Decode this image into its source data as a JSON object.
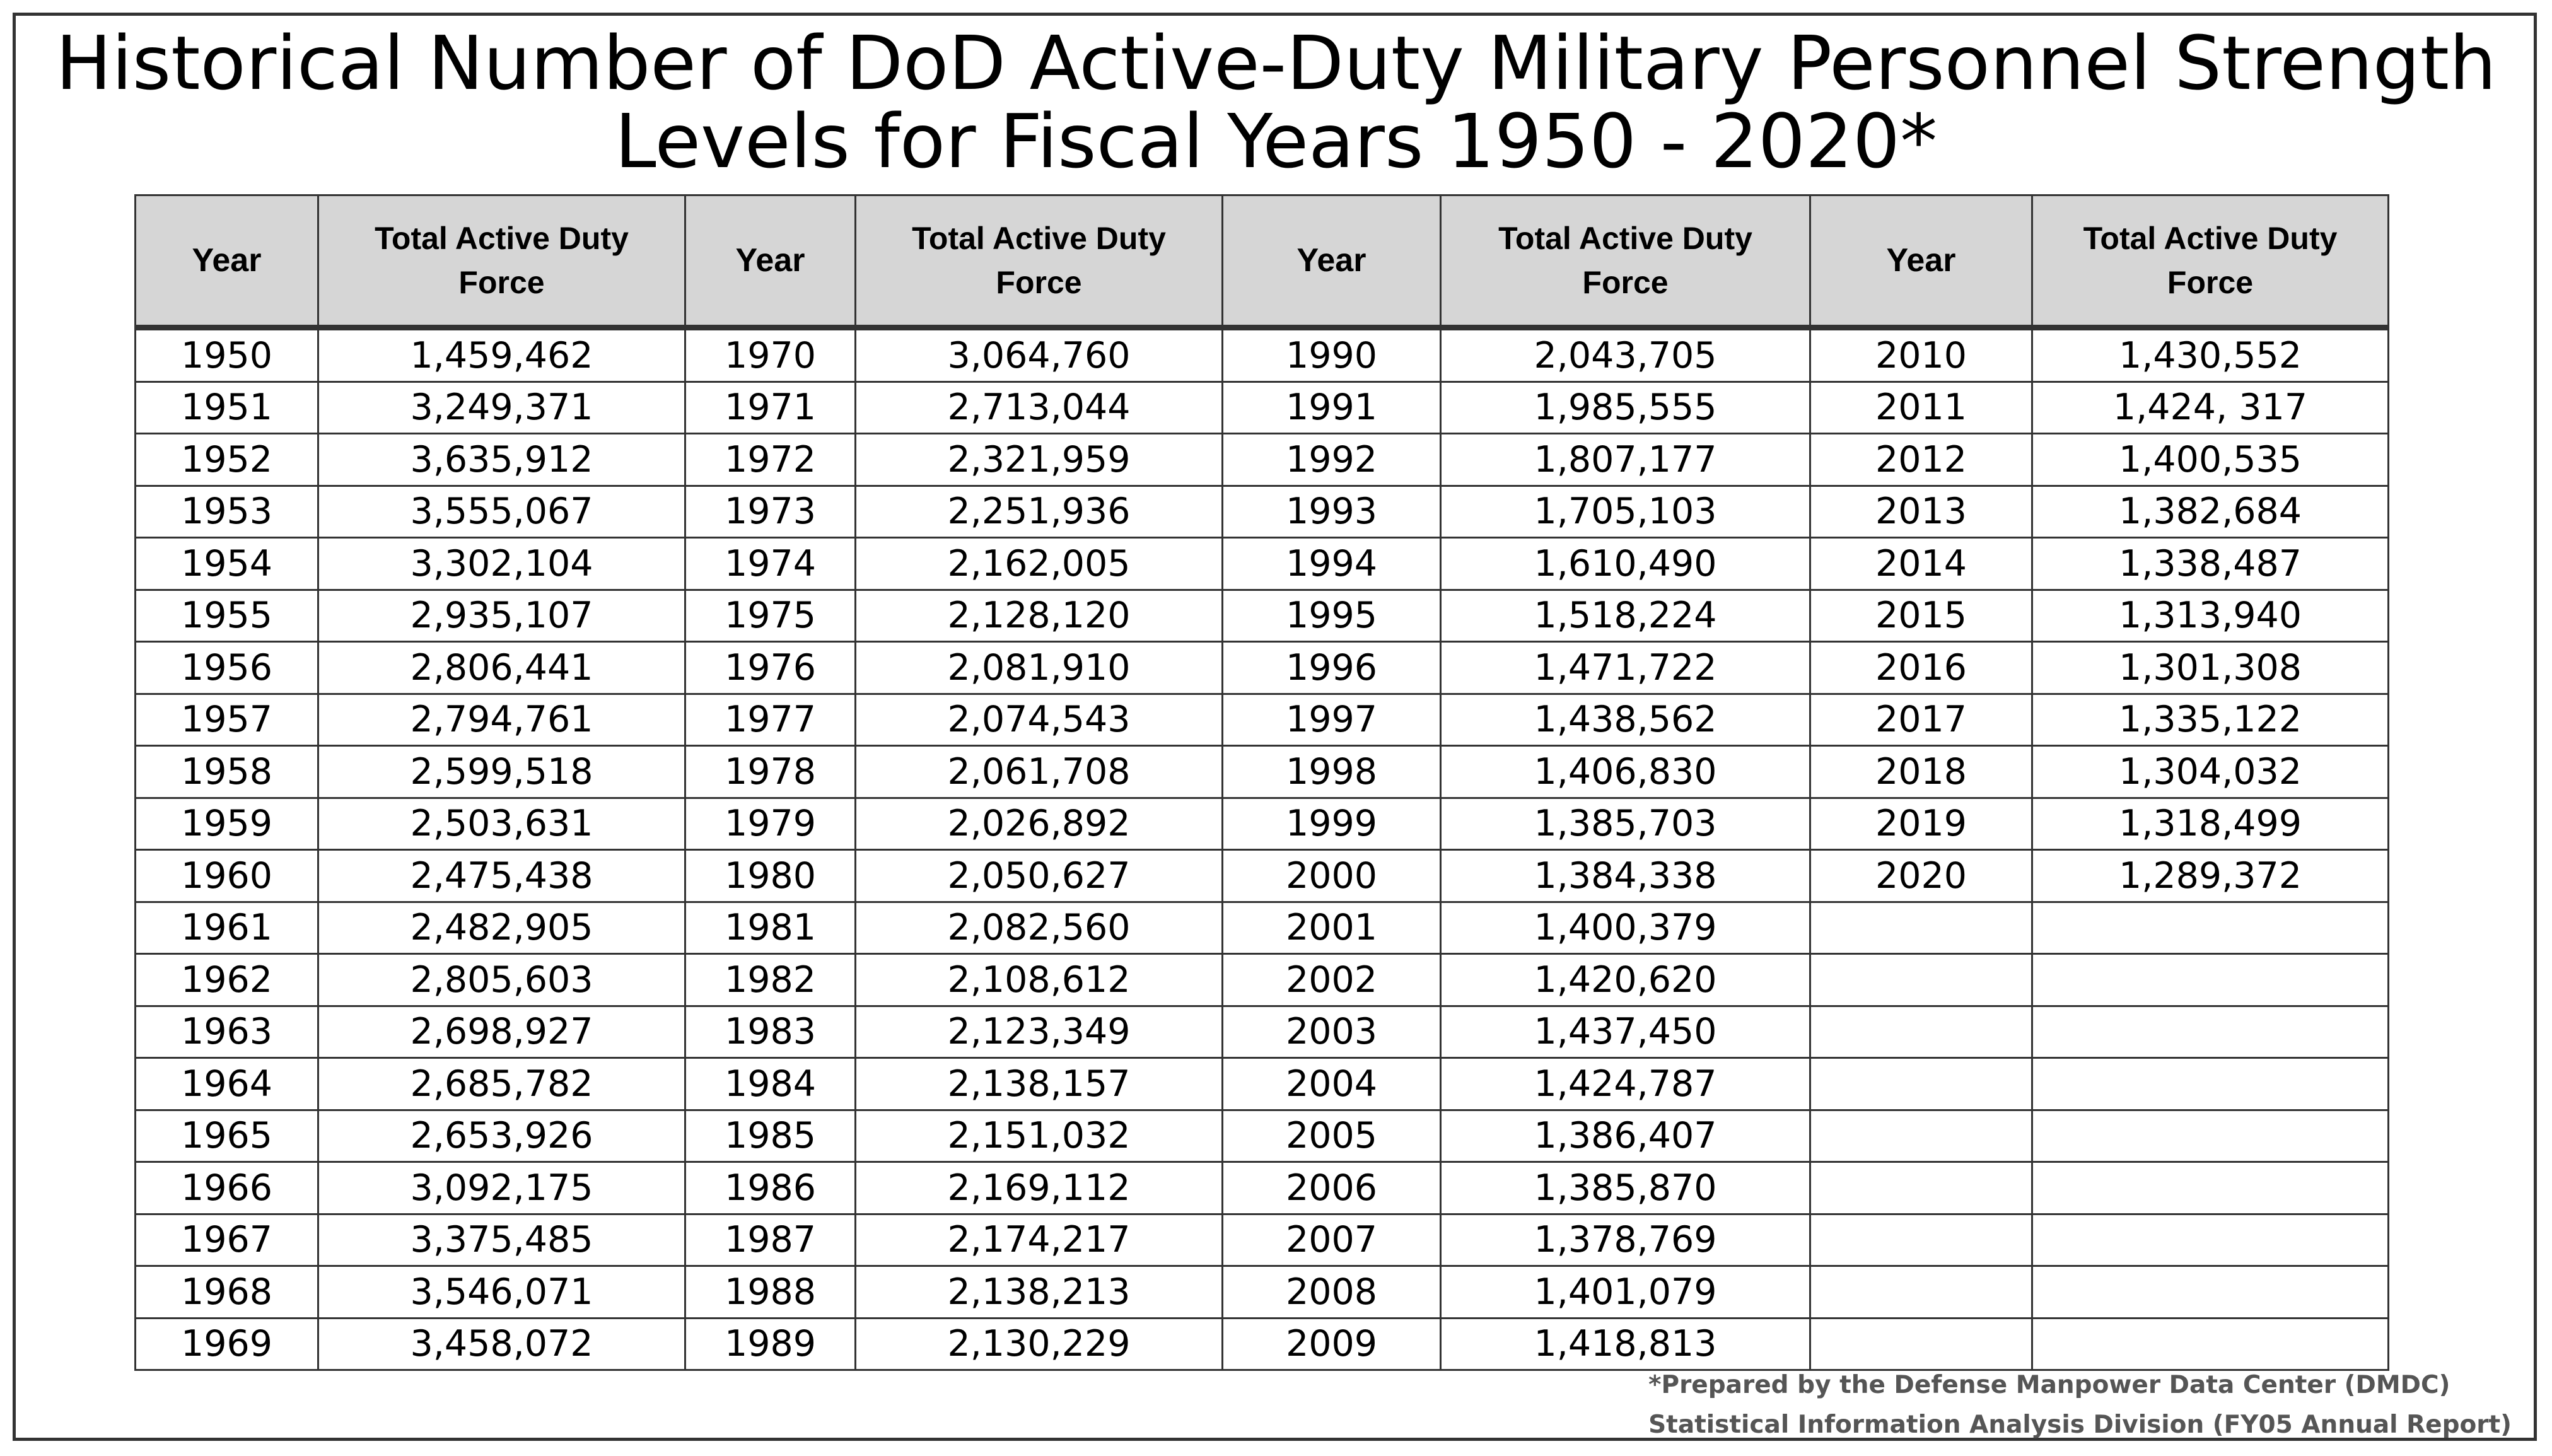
{
  "title": {
    "line1": "Historical Number of DoD Active-Duty Military Personnel Strength",
    "line2": "Levels for Fiscal Years 1950 - 2020*"
  },
  "headers": {
    "year": "Year",
    "force": "Total Active Duty Force"
  },
  "columns": [
    {
      "rows": [
        {
          "year": "1950",
          "value": "1,459,462"
        },
        {
          "year": "1951",
          "value": "3,249,371"
        },
        {
          "year": "1952",
          "value": "3,635,912"
        },
        {
          "year": "1953",
          "value": "3,555,067"
        },
        {
          "year": "1954",
          "value": "3,302,104"
        },
        {
          "year": "1955",
          "value": "2,935,107"
        },
        {
          "year": "1956",
          "value": "2,806,441"
        },
        {
          "year": "1957",
          "value": "2,794,761"
        },
        {
          "year": "1958",
          "value": "2,599,518"
        },
        {
          "year": "1959",
          "value": "2,503,631"
        },
        {
          "year": "1960",
          "value": "2,475,438"
        },
        {
          "year": "1961",
          "value": "2,482,905"
        },
        {
          "year": "1962",
          "value": "2,805,603"
        },
        {
          "year": "1963",
          "value": "2,698,927"
        },
        {
          "year": "1964",
          "value": "2,685,782"
        },
        {
          "year": "1965",
          "value": "2,653,926"
        },
        {
          "year": "1966",
          "value": "3,092,175"
        },
        {
          "year": "1967",
          "value": "3,375,485"
        },
        {
          "year": "1968",
          "value": "3,546,071"
        },
        {
          "year": "1969",
          "value": "3,458,072"
        }
      ]
    },
    {
      "rows": [
        {
          "year": "1970",
          "value": "3,064,760"
        },
        {
          "year": "1971",
          "value": "2,713,044"
        },
        {
          "year": "1972",
          "value": "2,321,959"
        },
        {
          "year": "1973",
          "value": "2,251,936"
        },
        {
          "year": "1974",
          "value": "2,162,005"
        },
        {
          "year": "1975",
          "value": "2,128,120"
        },
        {
          "year": "1976",
          "value": "2,081,910"
        },
        {
          "year": "1977",
          "value": "2,074,543"
        },
        {
          "year": "1978",
          "value": "2,061,708"
        },
        {
          "year": "1979",
          "value": "2,026,892"
        },
        {
          "year": "1980",
          "value": "2,050,627"
        },
        {
          "year": "1981",
          "value": "2,082,560"
        },
        {
          "year": "1982",
          "value": "2,108,612"
        },
        {
          "year": "1983",
          "value": "2,123,349"
        },
        {
          "year": "1984",
          "value": "2,138,157"
        },
        {
          "year": "1985",
          "value": "2,151,032"
        },
        {
          "year": "1986",
          "value": "2,169,112"
        },
        {
          "year": "1987",
          "value": "2,174,217"
        },
        {
          "year": "1988",
          "value": "2,138,213"
        },
        {
          "year": "1989",
          "value": "2,130,229"
        }
      ]
    },
    {
      "rows": [
        {
          "year": "1990",
          "value": "2,043,705"
        },
        {
          "year": "1991",
          "value": "1,985,555"
        },
        {
          "year": "1992",
          "value": "1,807,177"
        },
        {
          "year": "1993",
          "value": "1,705,103"
        },
        {
          "year": "1994",
          "value": "1,610,490"
        },
        {
          "year": "1995",
          "value": "1,518,224"
        },
        {
          "year": "1996",
          "value": "1,471,722"
        },
        {
          "year": "1997",
          "value": "1,438,562"
        },
        {
          "year": "1998",
          "value": "1,406,830"
        },
        {
          "year": "1999",
          "value": "1,385,703"
        },
        {
          "year": "2000",
          "value": "1,384,338"
        },
        {
          "year": "2001",
          "value": "1,400,379"
        },
        {
          "year": "2002",
          "value": "1,420,620"
        },
        {
          "year": "2003",
          "value": "1,437,450"
        },
        {
          "year": "2004",
          "value": "1,424,787"
        },
        {
          "year": "2005",
          "value": "1,386,407"
        },
        {
          "year": "2006",
          "value": "1,385,870"
        },
        {
          "year": "2007",
          "value": "1,378,769"
        },
        {
          "year": "2008",
          "value": "1,401,079"
        },
        {
          "year": "2009",
          "value": "1,418,813"
        }
      ]
    },
    {
      "rows": [
        {
          "year": "2010",
          "value": "1,430,552"
        },
        {
          "year": "2011",
          "value": "1,424, 317"
        },
        {
          "year": "2012",
          "value": "1,400,535"
        },
        {
          "year": "2013",
          "value": "1,382,684"
        },
        {
          "year": "2014",
          "value": "1,338,487"
        },
        {
          "year": "2015",
          "value": "1,313,940"
        },
        {
          "year": "2016",
          "value": "1,301,308"
        },
        {
          "year": "2017",
          "value": "1,335,122"
        },
        {
          "year": "2018",
          "value": "1,304,032"
        },
        {
          "year": "2019",
          "value": "1,318,499"
        },
        {
          "year": "2020",
          "value": "1,289,372"
        }
      ]
    }
  ],
  "footnote": {
    "line1": "*Prepared by the Defense Manpower Data Center (DMDC)",
    "line2": "Statistical Information Analysis Division (FY05 Annual Report)"
  }
}
